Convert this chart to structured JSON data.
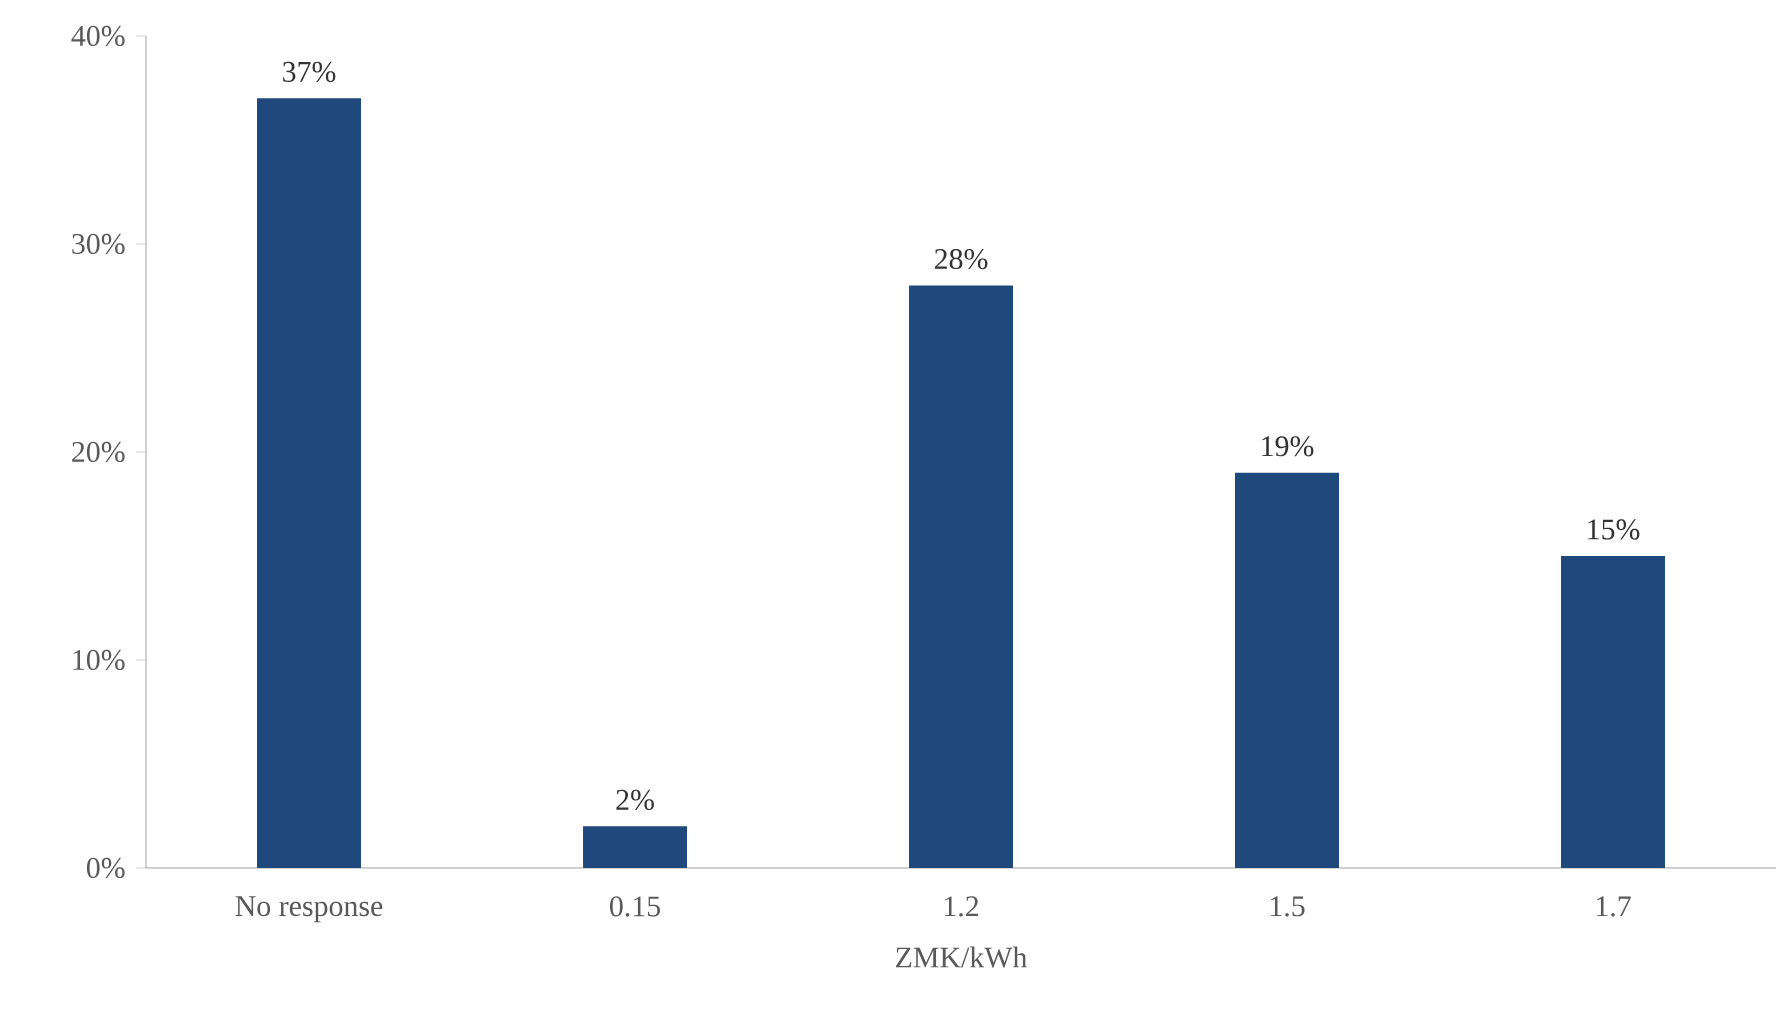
{
  "chart_data": {
    "type": "bar",
    "xlabel": "ZMK/kWh",
    "categories": [
      "No response",
      "0.15",
      "1.2",
      "1.5",
      "1.7"
    ],
    "values": [
      37,
      2,
      28,
      19,
      15
    ],
    "value_labels": [
      "37%",
      "2%",
      "28%",
      "19%",
      "15%"
    ],
    "color": "#1f497d",
    "ylim": [
      0,
      40
    ],
    "yticks": [
      {
        "value": 0,
        "label": "0%"
      },
      {
        "value": 10,
        "label": "10%"
      },
      {
        "value": 20,
        "label": "20%"
      },
      {
        "value": 30,
        "label": "30%"
      },
      {
        "value": 40,
        "label": "40%"
      }
    ],
    "grid": false
  }
}
